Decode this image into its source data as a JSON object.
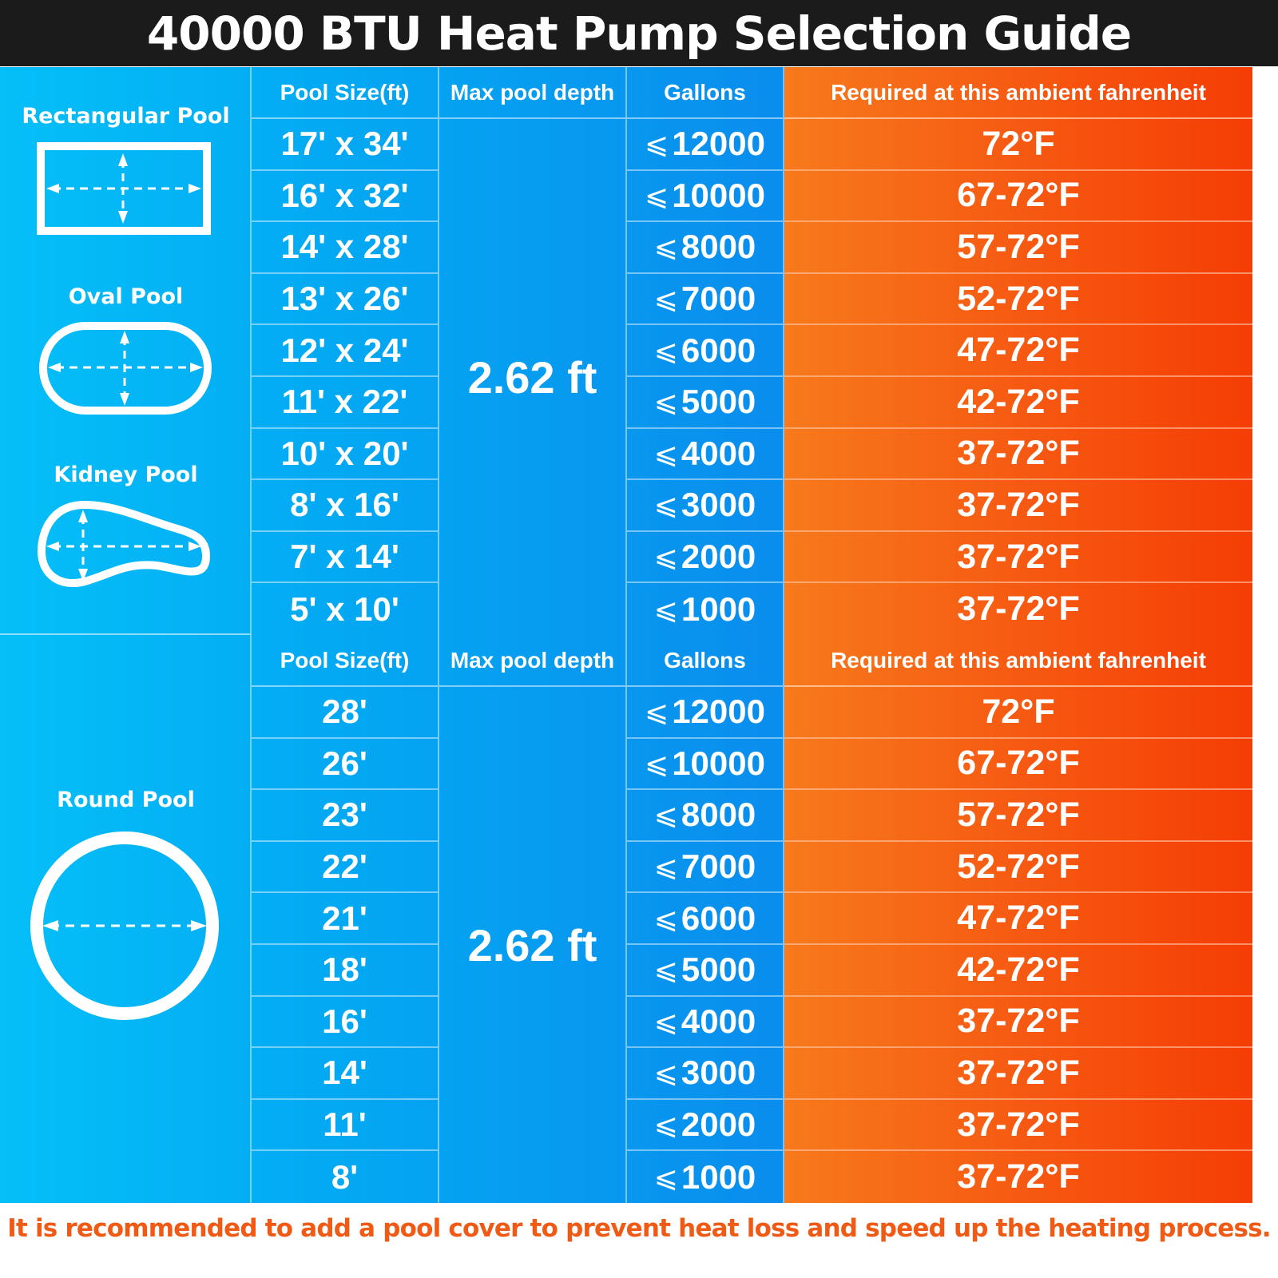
{
  "title": "40000 BTU Heat Pump Selection Guide",
  "colors": {
    "title_bg": "#1b1b1b",
    "blue_light": "#05bff8",
    "blue_dark": "#0a8ded",
    "orange_light": "#f77a1c",
    "orange_dark": "#f53d05",
    "footer_text": "#f05a14"
  },
  "headers": {
    "pool_size": "Pool Size(ft)",
    "max_depth": "Max pool depth",
    "gallons": "Gallons",
    "ambient": "Required at this ambient fahrenheit"
  },
  "leq_symbol": "⩽",
  "sections": [
    {
      "shapes": [
        {
          "label": "Rectangular Pool",
          "icon": "rectangle-pool-icon"
        },
        {
          "label": "Oval Pool",
          "icon": "oval-pool-icon"
        },
        {
          "label": "Kidney Pool",
          "icon": "kidney-pool-icon"
        }
      ],
      "max_depth": "2.62 ft",
      "rows": [
        {
          "size": "17' x 34'",
          "gallons": "12000",
          "temp": "72°F"
        },
        {
          "size": "16' x 32'",
          "gallons": "10000",
          "temp": "67-72°F"
        },
        {
          "size": "14' x 28'",
          "gallons": "8000",
          "temp": "57-72°F"
        },
        {
          "size": "13' x 26'",
          "gallons": "7000",
          "temp": "52-72°F"
        },
        {
          "size": "12' x 24'",
          "gallons": "6000",
          "temp": "47-72°F"
        },
        {
          "size": "11' x 22'",
          "gallons": "5000",
          "temp": "42-72°F"
        },
        {
          "size": "10' x 20'",
          "gallons": "4000",
          "temp": "37-72°F"
        },
        {
          "size": "8' x 16'",
          "gallons": "3000",
          "temp": "37-72°F"
        },
        {
          "size": "7' x 14'",
          "gallons": "2000",
          "temp": "37-72°F"
        },
        {
          "size": "5' x 10'",
          "gallons": "1000",
          "temp": "37-72°F"
        }
      ]
    },
    {
      "shapes": [
        {
          "label": "Round Pool",
          "icon": "round-pool-icon"
        }
      ],
      "max_depth": "2.62 ft",
      "rows": [
        {
          "size": "28'",
          "gallons": "12000",
          "temp": "72°F"
        },
        {
          "size": "26'",
          "gallons": "10000",
          "temp": "67-72°F"
        },
        {
          "size": "23'",
          "gallons": "8000",
          "temp": "57-72°F"
        },
        {
          "size": "22'",
          "gallons": "7000",
          "temp": "52-72°F"
        },
        {
          "size": "21'",
          "gallons": "6000",
          "temp": "47-72°F"
        },
        {
          "size": "18'",
          "gallons": "5000",
          "temp": "42-72°F"
        },
        {
          "size": "16'",
          "gallons": "4000",
          "temp": "37-72°F"
        },
        {
          "size": "14'",
          "gallons": "3000",
          "temp": "37-72°F"
        },
        {
          "size": "11'",
          "gallons": "2000",
          "temp": "37-72°F"
        },
        {
          "size": "8'",
          "gallons": "1000",
          "temp": "37-72°F"
        }
      ]
    }
  ],
  "footer": "It is recommended to add a pool cover to prevent heat loss and speed up the heating process."
}
